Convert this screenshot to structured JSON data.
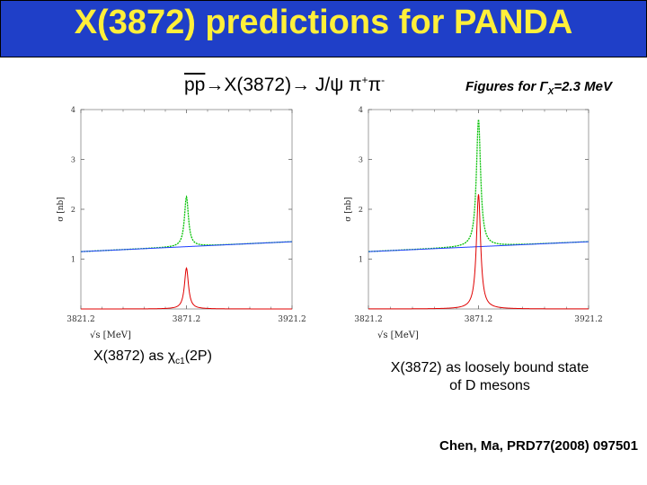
{
  "title": "X(3872) predictions for PANDA",
  "reaction": {
    "bar_part": "pp",
    "rest": "→X(3872)→ J/ψ π",
    "sup1": "+",
    "mid": "π",
    "sup2": "-"
  },
  "figure_note": {
    "prefix": "Figures for ",
    "gamma": "Γ",
    "sub": "X",
    "suffix": "=2.3 MeV"
  },
  "caption_left": {
    "prefix": "X(3872) as ",
    "chi": "χ",
    "sub": "c1",
    "suffix": "(2P)"
  },
  "caption_right": {
    "line1": "X(3872) as loosely bound state",
    "line2": "of D mesons"
  },
  "credit": "Chen, Ma, PRD77(2008) 097501",
  "chart_data": [
    {
      "type": "line",
      "xlabel": "√s [MeV]",
      "ylabel": "σ [nb]",
      "xlim": [
        3821.2,
        3921.2
      ],
      "ylim": [
        0,
        4
      ],
      "xticks": [
        "3821.2",
        "3871.2",
        "3921.2"
      ],
      "yticks": [
        "1",
        "2",
        "3",
        "4"
      ],
      "peak_x": 3871.2,
      "width": 2.3,
      "series": [
        {
          "color": "#00c000",
          "kind": "total",
          "background": [
            1.15,
            1.35
          ],
          "peak_height": 1.0
        },
        {
          "color": "#2040ff",
          "kind": "background",
          "background": [
            1.15,
            1.35
          ]
        },
        {
          "color": "#e00000",
          "kind": "resonance",
          "peak_height": 0.82
        }
      ]
    },
    {
      "type": "line",
      "xlabel": "√s [MeV]",
      "ylabel": "σ [nb]",
      "xlim": [
        3821.2,
        3921.2
      ],
      "ylim": [
        0,
        4
      ],
      "xticks": [
        "3821.2",
        "3871.2",
        "3921.2"
      ],
      "yticks": [
        "1",
        "2",
        "3",
        "4"
      ],
      "peak_x": 3871.2,
      "width": 2.3,
      "series": [
        {
          "color": "#00c000",
          "kind": "total",
          "background": [
            1.15,
            1.35
          ],
          "peak_height": 2.55
        },
        {
          "color": "#2040ff",
          "kind": "background",
          "background": [
            1.15,
            1.35
          ]
        },
        {
          "color": "#e00000",
          "kind": "resonance",
          "peak_height": 2.3
        }
      ]
    }
  ]
}
